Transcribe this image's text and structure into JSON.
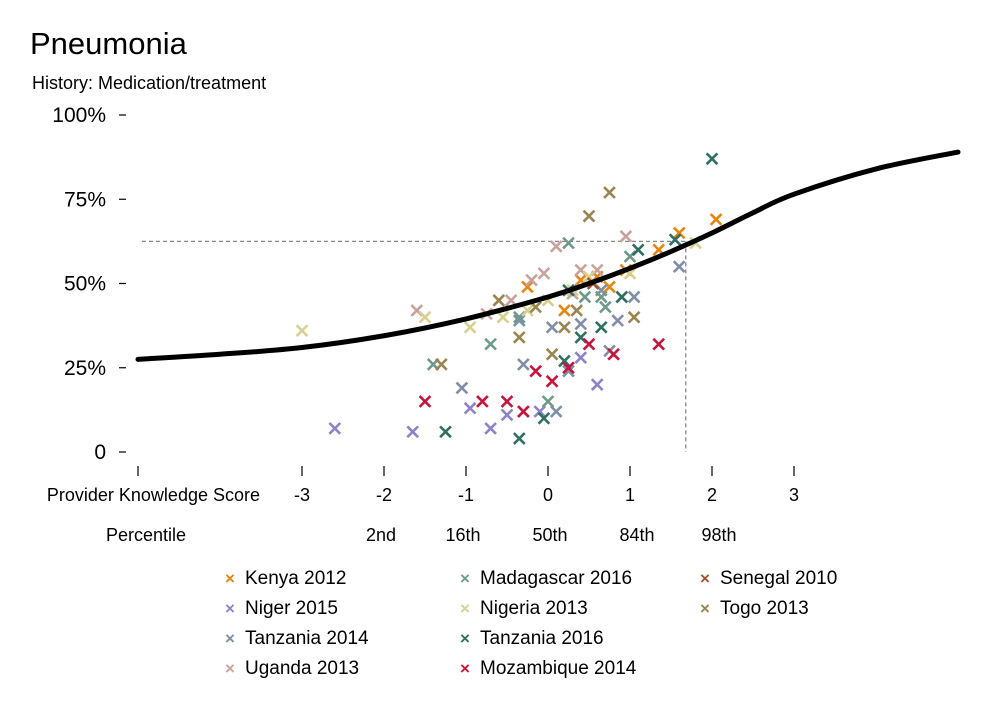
{
  "header": {
    "title": "Pneumonia",
    "subtitle": "History: Medication/treatment"
  },
  "chart_data": {
    "type": "scatter",
    "title": "Pneumonia",
    "subtitle": "History: Medication/treatment",
    "xlabel": "Provider Knowledge Score",
    "ylabel": "",
    "xlim": [
      -5,
      5
    ],
    "ylim": [
      0,
      100
    ],
    "x_ticks": [
      {
        "value": -5,
        "label": ""
      },
      {
        "value": -3,
        "label": "-3"
      },
      {
        "value": -2,
        "label": "-2"
      },
      {
        "value": -1,
        "label": "-1"
      },
      {
        "value": 0,
        "label": "0"
      },
      {
        "value": 1,
        "label": "1"
      },
      {
        "value": 2,
        "label": "2"
      },
      {
        "value": 3,
        "label": "3"
      }
    ],
    "y_ticks": [
      {
        "value": 0,
        "label": "0"
      },
      {
        "value": 25,
        "label": "25%"
      },
      {
        "value": 50,
        "label": "50%"
      },
      {
        "value": 75,
        "label": "75%"
      },
      {
        "value": 100,
        "label": "100%"
      }
    ],
    "percentile_label": "Percentile",
    "percentiles": [
      {
        "value": -2,
        "label": "2nd"
      },
      {
        "value": -1,
        "label": "16th"
      },
      {
        "value": 0,
        "label": "50th"
      },
      {
        "value": 1,
        "label": "84th"
      },
      {
        "value": 2,
        "label": "98th"
      }
    ],
    "reference": {
      "x": 1.68,
      "y": 62.5
    },
    "fit_curve": [
      [
        -5,
        27.5
      ],
      [
        -4,
        29
      ],
      [
        -3,
        31
      ],
      [
        -2,
        34.5
      ],
      [
        -1,
        39.5
      ],
      [
        0,
        46
      ],
      [
        0.5,
        50
      ],
      [
        1,
        54.5
      ],
      [
        1.5,
        59.5
      ],
      [
        2,
        65
      ],
      [
        2.5,
        71
      ],
      [
        3,
        76.5
      ],
      [
        4,
        84
      ],
      [
        5,
        89
      ]
    ],
    "series": [
      {
        "name": "Kenya 2012",
        "color": "#E8850E",
        "points": [
          [
            -0.25,
            49
          ],
          [
            0.4,
            51
          ],
          [
            0.2,
            42
          ],
          [
            0.6,
            52
          ],
          [
            0.75,
            49
          ],
          [
            0.95,
            54
          ],
          [
            1.35,
            60
          ],
          [
            1.6,
            65
          ],
          [
            2.05,
            69
          ]
        ]
      },
      {
        "name": "Niger 2015",
        "color": "#8E82C8",
        "points": [
          [
            -2.6,
            7
          ],
          [
            -1.65,
            6
          ],
          [
            -0.95,
            13
          ],
          [
            -0.7,
            7
          ],
          [
            -0.5,
            11
          ],
          [
            -0.3,
            12
          ],
          [
            -0.1,
            12
          ],
          [
            0.6,
            20
          ],
          [
            0.4,
            28
          ]
        ]
      },
      {
        "name": "Tanzania 2014",
        "color": "#7F8FA6",
        "points": [
          [
            -1.05,
            19
          ],
          [
            -0.3,
            26
          ],
          [
            -0.35,
            39
          ],
          [
            0.05,
            37
          ],
          [
            0.4,
            38
          ],
          [
            0.25,
            24
          ],
          [
            0.85,
            39
          ],
          [
            0.65,
            48
          ],
          [
            1.05,
            46
          ],
          [
            1.6,
            55
          ],
          [
            0.1,
            12
          ],
          [
            0.75,
            30
          ]
        ]
      },
      {
        "name": "Uganda 2013",
        "color": "#C9A29C",
        "points": [
          [
            -1.6,
            42
          ],
          [
            -0.75,
            41
          ],
          [
            -0.2,
            51
          ],
          [
            -0.05,
            53
          ],
          [
            0.1,
            61
          ],
          [
            -0.45,
            45
          ],
          [
            0.3,
            47
          ],
          [
            0.4,
            54
          ],
          [
            0.6,
            54
          ],
          [
            0.95,
            64
          ]
        ]
      },
      {
        "name": "Madagascar 2016",
        "color": "#6E9A8C",
        "points": [
          [
            -1.4,
            26
          ],
          [
            -0.7,
            32
          ],
          [
            -0.35,
            40
          ],
          [
            0.25,
            62
          ],
          [
            0.45,
            46
          ],
          [
            0.65,
            46
          ],
          [
            1.0,
            58
          ],
          [
            0.0,
            15
          ],
          [
            0.7,
            43
          ]
        ]
      },
      {
        "name": "Nigeria 2013",
        "color": "#D8D08E",
        "points": [
          [
            -3.0,
            36
          ],
          [
            -1.5,
            40
          ],
          [
            -0.95,
            37
          ],
          [
            -0.55,
            40
          ],
          [
            -0.25,
            42
          ],
          [
            0.0,
            45
          ],
          [
            0.3,
            48
          ],
          [
            0.5,
            52
          ],
          [
            1.0,
            53
          ],
          [
            1.8,
            62
          ]
        ]
      },
      {
        "name": "Tanzania 2016",
        "color": "#2F6F62",
        "points": [
          [
            -1.25,
            6
          ],
          [
            -0.35,
            4
          ],
          [
            -0.05,
            10
          ],
          [
            0.2,
            27
          ],
          [
            0.4,
            34
          ],
          [
            0.65,
            37
          ],
          [
            0.9,
            46
          ],
          [
            1.1,
            60
          ],
          [
            1.55,
            63
          ],
          [
            2.0,
            87
          ],
          [
            0.25,
            48
          ]
        ]
      },
      {
        "name": "Mozambique 2014",
        "color": "#C8143C",
        "points": [
          [
            -1.5,
            15
          ],
          [
            -0.8,
            15
          ],
          [
            -0.5,
            15
          ],
          [
            -0.3,
            12
          ],
          [
            -0.15,
            24
          ],
          [
            0.05,
            21
          ],
          [
            0.25,
            25
          ],
          [
            0.5,
            32
          ],
          [
            0.8,
            29
          ],
          [
            1.35,
            32
          ]
        ]
      },
      {
        "name": "Senegal 2010",
        "color": "#A0522D",
        "points": [
          [
            0.55,
            50
          ]
        ]
      },
      {
        "name": "Togo 2013",
        "color": "#9A8550",
        "points": [
          [
            -1.3,
            26
          ],
          [
            -0.6,
            45
          ],
          [
            -0.35,
            34
          ],
          [
            0.05,
            29
          ],
          [
            0.2,
            37
          ],
          [
            0.35,
            42
          ],
          [
            0.5,
            70
          ],
          [
            0.75,
            77
          ],
          [
            1.05,
            40
          ],
          [
            -0.15,
            43
          ]
        ]
      }
    ]
  }
}
